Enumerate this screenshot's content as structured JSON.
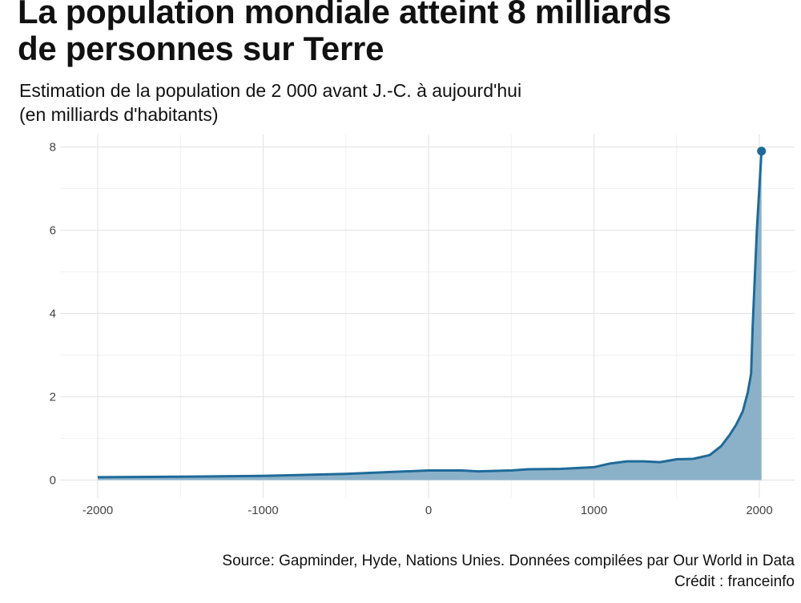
{
  "title_lines": [
    "La population mondiale atteint 8 milliards",
    "de personnes sur Terre"
  ],
  "subtitle_lines": [
    "Estimation de la population de 2 000 avant J.-C. à aujourd'hui",
    "(en milliards d'habitants)"
  ],
  "source": "Source: Gapminder, Hyde, Nations Unies. Données compilées par Our World in Data",
  "credit": "Crédit : franceinfo",
  "chart_data": {
    "type": "area",
    "title": "La population mondiale atteint 8 milliards de personnes sur Terre",
    "xlabel": "",
    "ylabel": "",
    "xlim": [
      -2200,
      2200
    ],
    "ylim": [
      0,
      8.3
    ],
    "x_ticks": [
      -2000,
      -1000,
      0,
      1000,
      2000
    ],
    "x_tick_labels": [
      "-2000",
      "-1000",
      "0",
      "1000",
      "2000"
    ],
    "y_ticks": [
      0,
      2,
      4,
      6,
      8
    ],
    "y_tick_labels": [
      "0",
      "2",
      "4",
      "6",
      "8"
    ],
    "grid": true,
    "color": "#1f6a99",
    "fill_color": "#8bb1c9",
    "x": [
      -2000,
      -1500,
      -1000,
      -500,
      0,
      200,
      300,
      500,
      600,
      800,
      1000,
      1100,
      1200,
      1300,
      1400,
      1500,
      1600,
      1700,
      1770,
      1820,
      1860,
      1900,
      1930,
      1950,
      1960,
      1985,
      2013
    ],
    "values": [
      0.07,
      0.08,
      0.1,
      0.15,
      0.23,
      0.23,
      0.21,
      0.23,
      0.26,
      0.27,
      0.31,
      0.4,
      0.45,
      0.45,
      0.43,
      0.5,
      0.51,
      0.6,
      0.82,
      1.08,
      1.33,
      1.65,
      2.1,
      2.55,
      3.7,
      6.0,
      7.9
    ],
    "last_point_marker": true
  }
}
